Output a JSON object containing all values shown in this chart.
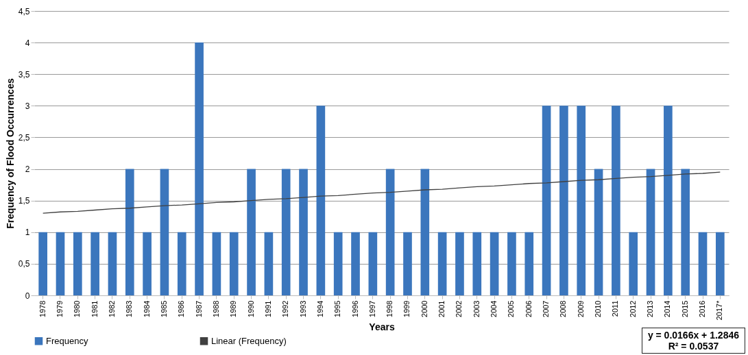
{
  "chart_data": {
    "type": "bar",
    "xlabel": "Years",
    "ylabel": "Frequency of Flood Occurrences",
    "categories": [
      "1978",
      "1979",
      "1980",
      "1981",
      "1982",
      "1983",
      "1984",
      "1985",
      "1986",
      "1987",
      "1988",
      "1989",
      "1990",
      "1991",
      "1992",
      "1993",
      "1994",
      "1995",
      "1996",
      "1997",
      "1998",
      "1999",
      "2000",
      "2001",
      "2002",
      "2003",
      "2004",
      "2005",
      "2006",
      "2007",
      "2008",
      "2009",
      "2010",
      "2011",
      "2012",
      "2013",
      "2014",
      "2015",
      "2016",
      "2017*"
    ],
    "series": [
      {
        "name": "Frequency",
        "color": "#3b76bd",
        "values": [
          1,
          1,
          1,
          1,
          1,
          2,
          1,
          2,
          1,
          4,
          1,
          1,
          2,
          1,
          2,
          2,
          3,
          1,
          1,
          1,
          2,
          1,
          2,
          1,
          1,
          1,
          1,
          1,
          1,
          3,
          3,
          3,
          2,
          3,
          1,
          2,
          3,
          2,
          1,
          1
        ]
      },
      {
        "name": "Linear (Frequency)",
        "type": "line",
        "color": "#404040",
        "values": [
          1.3,
          1.32,
          1.33,
          1.35,
          1.37,
          1.38,
          1.4,
          1.42,
          1.43,
          1.45,
          1.47,
          1.48,
          1.5,
          1.52,
          1.53,
          1.55,
          1.57,
          1.58,
          1.6,
          1.62,
          1.63,
          1.65,
          1.67,
          1.68,
          1.7,
          1.72,
          1.73,
          1.75,
          1.77,
          1.78,
          1.8,
          1.82,
          1.83,
          1.85,
          1.87,
          1.88,
          1.9,
          1.92,
          1.93,
          1.95
        ]
      }
    ],
    "ylim": [
      0,
      4.5
    ],
    "yticks": [
      0,
      {
        "value": 0.5,
        "label": "0,5"
      },
      1,
      {
        "value": 1.5,
        "label": "1,5"
      },
      2,
      {
        "value": 2.5,
        "label": "2,5"
      },
      3,
      {
        "value": 3.5,
        "label": "3,5"
      },
      4,
      {
        "value": 4.5,
        "label": "4,5"
      }
    ],
    "grid": "y",
    "legend": "bottom",
    "annotations": [
      "y = 0.0166x + 1.2846",
      "R² = 0.0537"
    ]
  }
}
